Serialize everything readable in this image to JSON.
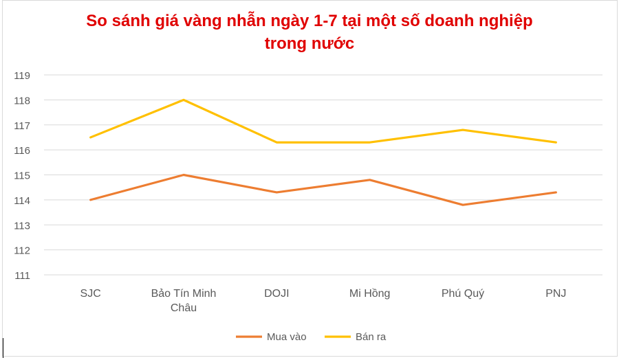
{
  "chart_data": {
    "type": "line",
    "title_line1": "So sánh giá vàng nhẫn ngày 1-7 tại một số doanh nghiệp",
    "title_line2": "trong nước",
    "categories": [
      [
        "SJC"
      ],
      [
        "Bảo Tín Minh",
        "Châu"
      ],
      [
        "DOJI"
      ],
      [
        "Mi Hồng"
      ],
      [
        "Phú Quý"
      ],
      [
        "PNJ"
      ]
    ],
    "ylim": [
      111,
      119
    ],
    "yticks": [
      111,
      112,
      113,
      114,
      115,
      116,
      117,
      118,
      119
    ],
    "grid": true,
    "legend_position": "bottom",
    "series": [
      {
        "name": "Mua vào",
        "color": "#ED7D31",
        "values": [
          114.0,
          115.0,
          114.3,
          114.8,
          113.8,
          114.3
        ]
      },
      {
        "name": "Bán ra",
        "color": "#FFC000",
        "values": [
          116.5,
          118.0,
          116.3,
          116.3,
          116.8,
          116.3
        ]
      }
    ]
  }
}
